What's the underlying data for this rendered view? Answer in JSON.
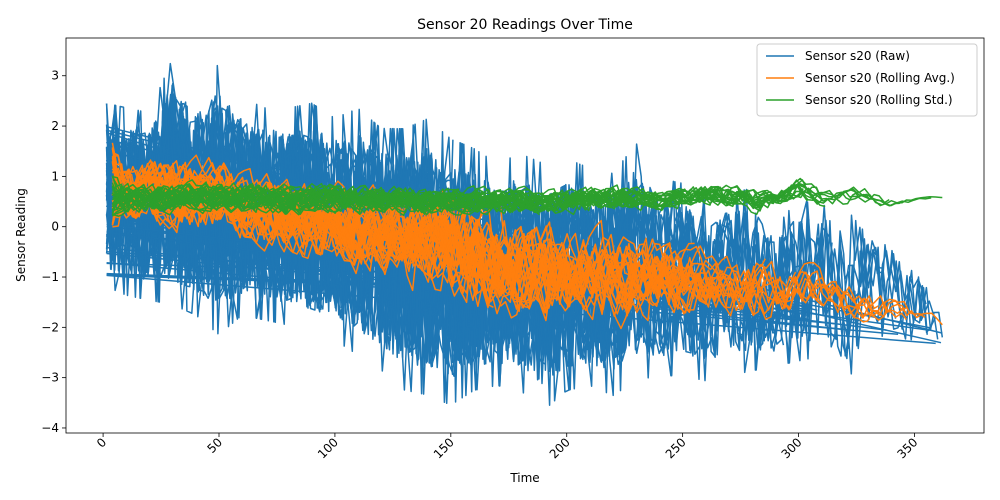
{
  "chart_data": {
    "type": "line",
    "title": "Sensor 20 Readings Over Time",
    "xlabel": "Time",
    "ylabel": "Sensor Reading",
    "xlim": [
      -16,
      380
    ],
    "ylim": [
      -4.1,
      3.75
    ],
    "xticks": [
      0,
      50,
      100,
      150,
      200,
      250,
      300,
      350
    ],
    "yticks": [
      -4,
      -3,
      -2,
      -1,
      0,
      1,
      2,
      3
    ],
    "legend_position": "top-right",
    "grid": false,
    "series": [
      {
        "name": "Sensor s20 (Raw)",
        "color": "#1f77b4",
        "envelope": {
          "x": [
            0,
            10,
            20,
            30,
            40,
            50,
            60,
            70,
            80,
            90,
            100,
            110,
            120,
            130,
            140,
            150,
            160,
            170,
            180,
            190,
            200,
            210,
            220,
            230,
            240,
            250,
            260,
            270,
            280,
            290,
            300,
            310,
            320,
            330,
            340,
            350,
            362
          ],
          "upper": [
            2.5,
            2.4,
            2.3,
            3.4,
            2.7,
            3.3,
            2.6,
            2.4,
            2.4,
            2.5,
            2.2,
            2.4,
            2.0,
            2.0,
            2.2,
            1.8,
            1.6,
            1.3,
            1.5,
            1.3,
            1.4,
            1.2,
            1.1,
            1.7,
            1.0,
            0.9,
            0.6,
            0.7,
            0.8,
            0.0,
            0.6,
            0.4,
            0.9,
            0.2,
            -0.2,
            -0.7,
            -1.5
          ],
          "lower": [
            -1.2,
            -1.4,
            -1.5,
            -1.6,
            -1.8,
            -2.2,
            -1.8,
            -1.9,
            -2.0,
            -2.2,
            -2.3,
            -2.6,
            -2.9,
            -3.3,
            -3.4,
            -3.6,
            -3.3,
            -3.2,
            -3.3,
            -3.7,
            -3.3,
            -3.2,
            -3.4,
            -3.1,
            -3.0,
            -3.0,
            -3.1,
            -3.0,
            -2.9,
            -2.8,
            -2.7,
            -2.6,
            -3.1,
            -2.6,
            -2.4,
            -2.5,
            -2.2
          ],
          "mean": [
            0.7,
            0.6,
            0.5,
            0.5,
            0.4,
            0.35,
            0.3,
            0.2,
            0.1,
            0.0,
            -0.1,
            -0.2,
            -0.3,
            -0.4,
            -0.5,
            -0.6,
            -0.7,
            -0.8,
            -0.9,
            -1.0,
            -1.0,
            -1.0,
            -1.0,
            -1.1,
            -1.1,
            -1.2,
            -1.3,
            -1.3,
            -1.4,
            -1.5,
            -1.5,
            -1.6,
            -1.7,
            -1.8,
            -1.8,
            -1.9,
            -2.0
          ]
        },
        "end_value": -2.2
      },
      {
        "name": "Sensor s20 (Rolling Avg.)",
        "color": "#ff7f0e",
        "envelope": {
          "x": [
            4,
            10,
            20,
            30,
            40,
            50,
            60,
            70,
            80,
            90,
            100,
            110,
            120,
            130,
            140,
            150,
            160,
            170,
            180,
            190,
            200,
            210,
            220,
            230,
            240,
            250,
            260,
            270,
            280,
            290,
            300,
            310,
            320,
            330,
            340,
            350,
            362
          ],
          "upper": [
            1.9,
            1.8,
            1.9,
            2.0,
            1.9,
            2.0,
            1.6,
            1.5,
            1.5,
            1.5,
            1.4,
            1.4,
            1.3,
            1.2,
            1.4,
            1.5,
            1.3,
            1.1,
            0.9,
            0.8,
            0.7,
            0.6,
            0.6,
            0.5,
            0.4,
            0.3,
            0.0,
            -0.2,
            0.1,
            -0.4,
            -0.3,
            -0.6,
            -0.8,
            -1.0,
            -1.1,
            -1.3,
            -1.8
          ],
          "lower": [
            -0.3,
            -0.6,
            -0.5,
            -0.6,
            -0.7,
            -0.8,
            -0.9,
            -1.0,
            -1.2,
            -1.3,
            -1.5,
            -1.6,
            -1.7,
            -1.9,
            -2.1,
            -2.3,
            -2.5,
            -2.6,
            -2.7,
            -2.6,
            -2.7,
            -2.6,
            -2.7,
            -2.5,
            -2.4,
            -2.4,
            -2.3,
            -2.2,
            -2.6,
            -2.2,
            -2.1,
            -2.1,
            -2.3,
            -2.2,
            -2.1,
            -2.1,
            -2.0
          ]
        },
        "end_value": -1.95
      },
      {
        "name": "Sensor s20 (Rolling Std.)",
        "color": "#2ca02c",
        "envelope": {
          "x": [
            4,
            20,
            40,
            60,
            80,
            100,
            120,
            140,
            160,
            180,
            200,
            220,
            240,
            260,
            270,
            280,
            290,
            300,
            310,
            320,
            330,
            340,
            350,
            362
          ],
          "upper": [
            1.1,
            1.0,
            1.1,
            1.05,
            1.0,
            1.0,
            0.95,
            0.95,
            0.95,
            0.9,
            0.9,
            1.0,
            0.8,
            1.0,
            1.0,
            0.9,
            0.8,
            1.15,
            0.8,
            0.9,
            0.9,
            0.65,
            0.65,
            0.6
          ],
          "lower": [
            0.1,
            0.1,
            0.1,
            0.1,
            0.05,
            0.1,
            0.1,
            0.05,
            0.1,
            0.1,
            0.1,
            0.2,
            0.2,
            0.3,
            0.2,
            0.1,
            0.3,
            0.4,
            0.2,
            0.3,
            0.25,
            0.3,
            0.5,
            0.55
          ]
        },
        "end_value": 0.58
      }
    ]
  }
}
